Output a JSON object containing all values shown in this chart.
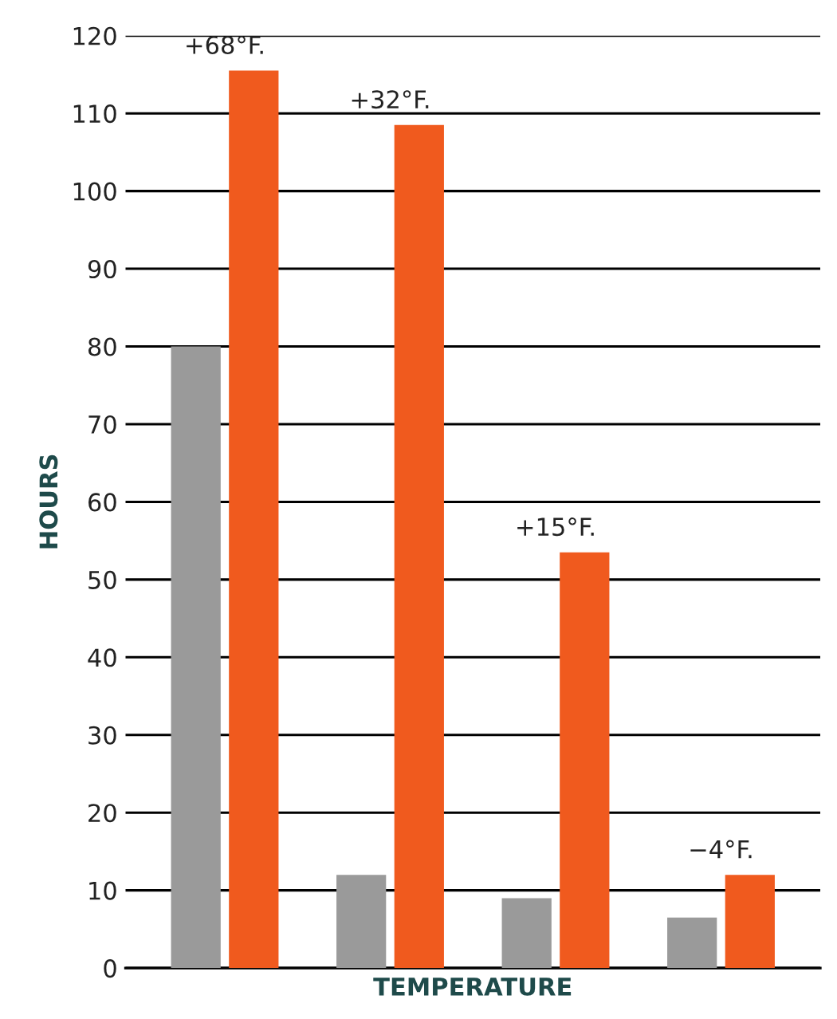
{
  "chart_data": {
    "type": "bar",
    "xlabel": "TEMPERATURE",
    "ylabel": "HOURS",
    "categories": [
      "+68°F.",
      "+32°F.",
      "+15°F.",
      "−4°F."
    ],
    "series": [
      {
        "color": "#9a9a9a",
        "values": [
          80,
          12,
          9,
          6.5
        ]
      },
      {
        "color": "#f05a1e",
        "values": [
          115.5,
          108.5,
          53.5,
          12
        ]
      }
    ],
    "ylim": [
      0,
      120
    ],
    "yticks": [
      0,
      10,
      20,
      30,
      40,
      50,
      60,
      70,
      80,
      90,
      100,
      110,
      120
    ],
    "grid": "y"
  }
}
